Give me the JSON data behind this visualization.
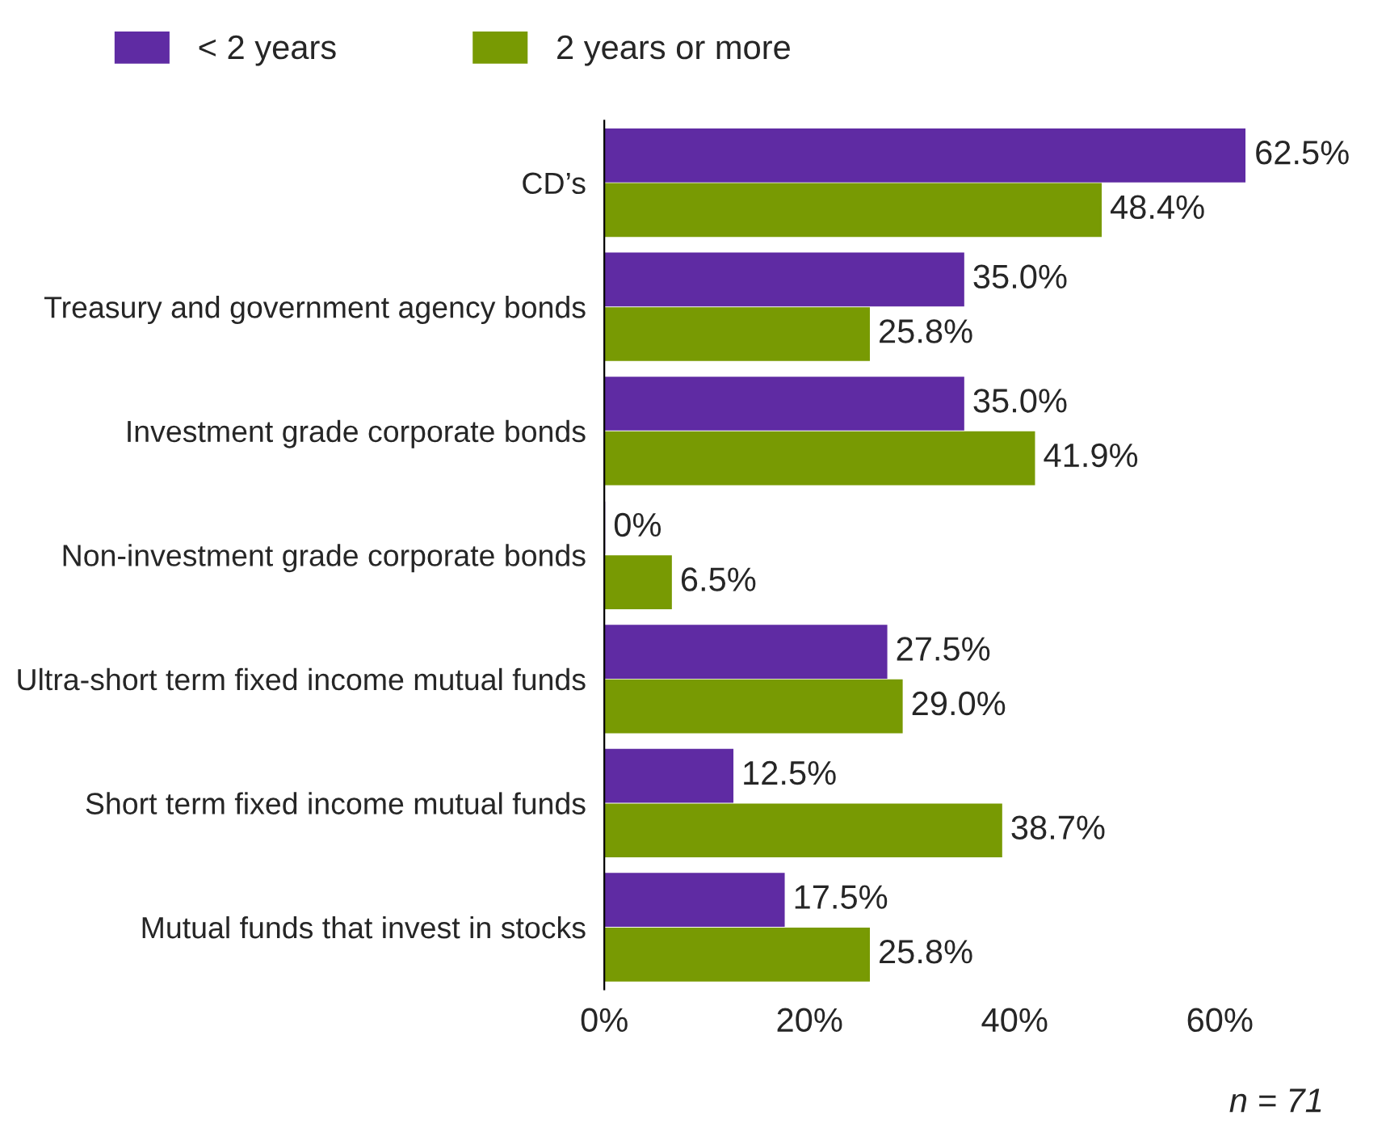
{
  "chart_data": {
    "type": "bar",
    "orientation": "horizontal",
    "categories": [
      "CD’s",
      "Treasury and government agency bonds",
      "Investment grade corporate bonds",
      "Non-investment grade corporate bonds",
      "Ultra-short term fixed income mutual funds",
      "Short term fixed income mutual funds",
      "Mutual funds that invest in stocks"
    ],
    "series": [
      {
        "name": "< 2 years",
        "color": "#5f2ba3",
        "values": [
          62.5,
          35.0,
          35.0,
          0,
          27.5,
          12.5,
          17.5
        ],
        "value_labels": [
          "62.5%",
          "35.0%",
          "35.0%",
          "0%",
          "27.5%",
          "12.5%",
          "17.5%"
        ]
      },
      {
        "name": "2 years or more",
        "color": "#789a03",
        "values": [
          48.4,
          25.8,
          41.9,
          6.5,
          29.0,
          38.7,
          25.8
        ],
        "value_labels": [
          "48.4%",
          "25.8%",
          "41.9%",
          "6.5%",
          "29.0%",
          "38.7%",
          "25.8%"
        ]
      }
    ],
    "xlim": [
      0,
      62.5
    ],
    "xticks": [
      {
        "value": 0,
        "label": "0%"
      },
      {
        "value": 20,
        "label": "20%"
      },
      {
        "value": 40,
        "label": "40%"
      },
      {
        "value": 60,
        "label": "60%"
      }
    ],
    "annotations": [
      "n = 71"
    ],
    "legend": "top left",
    "grid": false
  }
}
